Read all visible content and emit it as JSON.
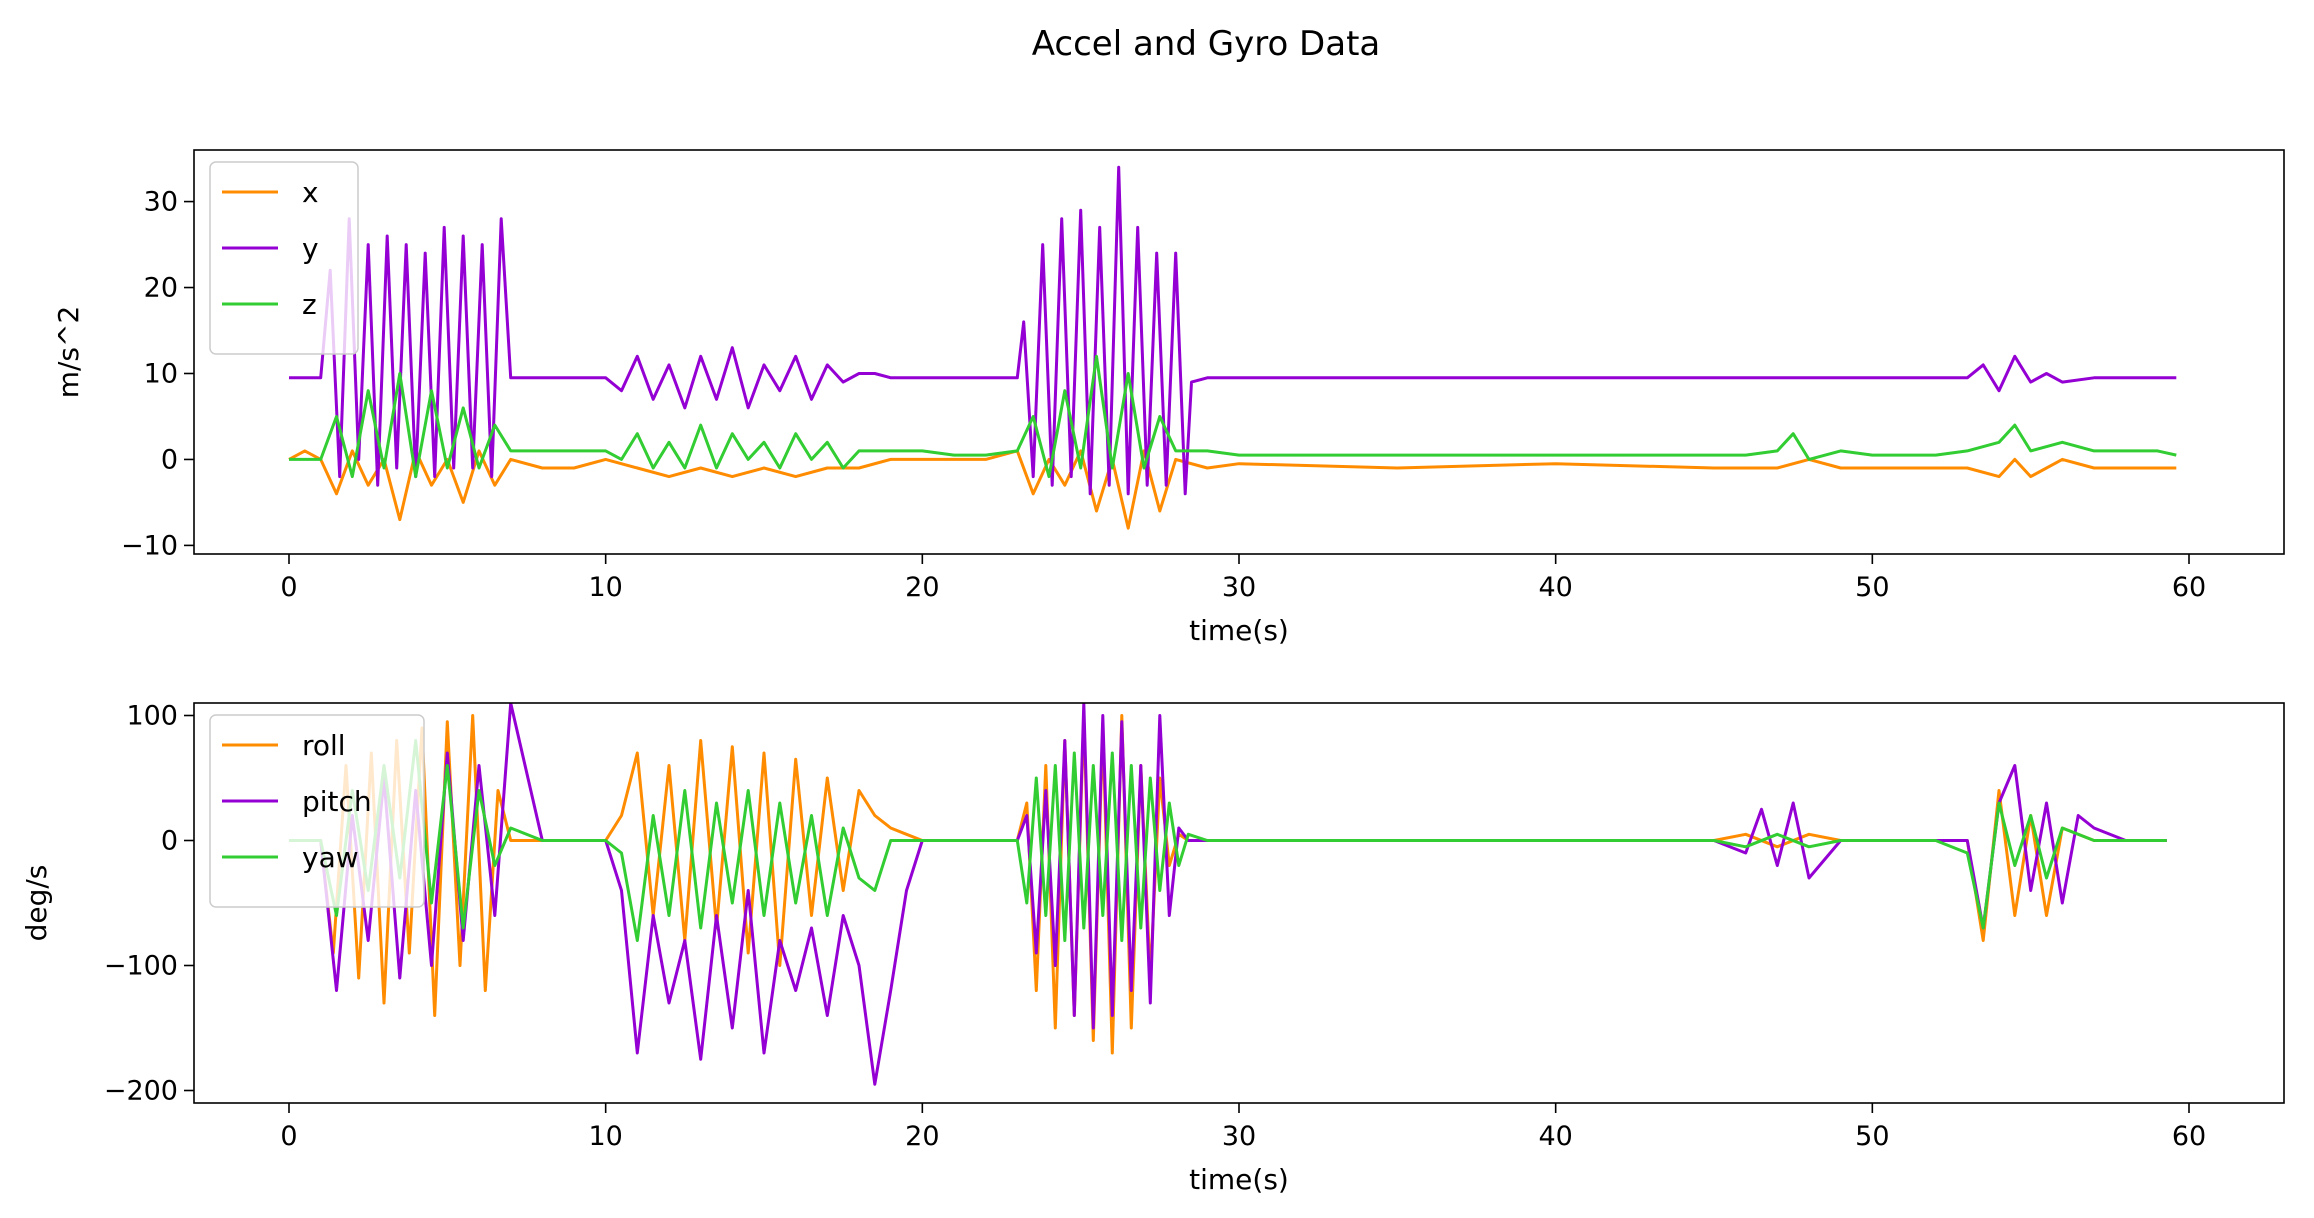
{
  "figure": {
    "title": "Accel and Gyro Data"
  },
  "colors": {
    "x": "#ff8c00",
    "y": "#9400d3",
    "z": "#32cd32",
    "roll": "#ff8c00",
    "pitch": "#9400d3",
    "yaw": "#32cd32"
  },
  "chart_data": [
    {
      "type": "line",
      "title": "",
      "xlabel": "time(s)",
      "ylabel": "m/s^2",
      "xlim": [
        -3,
        63
      ],
      "ylim": [
        -11,
        36
      ],
      "xticks": [
        0,
        10,
        20,
        30,
        40,
        50,
        60
      ],
      "yticks": [
        -10,
        0,
        10,
        20,
        30
      ],
      "ytick_labels": [
        "−10",
        "0",
        "10",
        "20",
        "30"
      ],
      "grid": false,
      "legend_position": "top-left",
      "series": [
        {
          "name": "x",
          "color": "#ff8c00",
          "x": [
            0,
            0.5,
            1,
            1.5,
            2,
            2.5,
            3,
            3.5,
            4,
            4.5,
            5,
            5.5,
            6,
            6.5,
            7,
            8,
            9,
            10,
            11,
            12,
            13,
            14,
            15,
            16,
            17,
            18,
            19,
            20,
            21,
            22,
            23,
            23.5,
            24,
            24.5,
            25,
            25.5,
            26,
            26.5,
            27,
            27.5,
            28,
            29,
            30,
            35,
            40,
            45,
            47,
            48,
            49,
            50,
            52,
            53,
            54,
            54.5,
            55,
            56,
            57,
            58,
            59,
            59.6
          ],
          "y": [
            0,
            1,
            0,
            -4,
            1,
            -3,
            0,
            -7,
            1,
            -3,
            0,
            -5,
            1,
            -3,
            0,
            -1,
            -1,
            0,
            -1,
            -2,
            -1,
            -2,
            -1,
            -2,
            -1,
            -1,
            0,
            0,
            0,
            0,
            1,
            -4,
            0,
            -3,
            1,
            -6,
            0,
            -8,
            1,
            -6,
            0,
            -1,
            -0.5,
            -1,
            -0.5,
            -1,
            -1,
            0,
            -1,
            -1,
            -1,
            -1,
            -2,
            0,
            -2,
            0,
            -1,
            -1,
            -1,
            -1
          ]
        },
        {
          "name": "y",
          "color": "#9400d3",
          "x": [
            0,
            1,
            1.3,
            1.6,
            1.9,
            2.2,
            2.5,
            2.8,
            3.1,
            3.4,
            3.7,
            4,
            4.3,
            4.6,
            4.9,
            5.2,
            5.5,
            5.8,
            6.1,
            6.4,
            6.7,
            7,
            8,
            9,
            10,
            10.5,
            11,
            11.5,
            12,
            12.5,
            13,
            13.5,
            14,
            14.5,
            15,
            15.5,
            16,
            16.5,
            17,
            17.5,
            18,
            18.5,
            19,
            19.5,
            20,
            21,
            22,
            23,
            23.2,
            23.5,
            23.8,
            24.1,
            24.4,
            24.7,
            25,
            25.3,
            25.6,
            25.9,
            26.2,
            26.5,
            26.8,
            27.1,
            27.4,
            27.7,
            28,
            28.3,
            28.5,
            29,
            30,
            35,
            40,
            45,
            50,
            53,
            53.5,
            54,
            54.5,
            55,
            55.5,
            56,
            57,
            58,
            59,
            59.6
          ],
          "y": [
            9.5,
            9.5,
            22,
            -2,
            28,
            0,
            25,
            -3,
            26,
            -1,
            25,
            -2,
            24,
            -2,
            27,
            -1,
            26,
            -1,
            25,
            -2,
            28,
            9.5,
            9.5,
            9.5,
            9.5,
            8,
            12,
            7,
            11,
            6,
            12,
            7,
            13,
            6,
            11,
            8,
            12,
            7,
            11,
            9,
            10,
            10,
            9.5,
            9.5,
            9.5,
            9.5,
            9.5,
            9.5,
            16,
            -2,
            25,
            -3,
            28,
            -2,
            29,
            -4,
            27,
            -3,
            34,
            -4,
            27,
            -3,
            24,
            -3,
            24,
            -4,
            9,
            9.5,
            9.5,
            9.5,
            9.5,
            9.5,
            9.5,
            9.5,
            11,
            8,
            12,
            9,
            10,
            9,
            9.5,
            9.5,
            9.5,
            9.5
          ]
        },
        {
          "name": "z",
          "color": "#32cd32",
          "x": [
            0,
            0.5,
            1,
            1.5,
            2,
            2.5,
            3,
            3.5,
            4,
            4.5,
            5,
            5.5,
            6,
            6.5,
            7,
            8,
            9,
            10,
            10.5,
            11,
            11.5,
            12,
            12.5,
            13,
            13.5,
            14,
            14.5,
            15,
            15.5,
            16,
            16.5,
            17,
            17.5,
            18,
            19,
            20,
            21,
            22,
            23,
            23.5,
            24,
            24.5,
            25,
            25.5,
            26,
            26.5,
            27,
            27.5,
            28,
            29,
            30,
            35,
            40,
            45,
            46,
            47,
            47.5,
            48,
            49,
            50,
            52,
            53,
            54,
            54.5,
            55,
            56,
            57,
            58,
            59,
            59.6
          ],
          "y": [
            0,
            0,
            0,
            5,
            -2,
            8,
            -1,
            10,
            -2,
            8,
            -1,
            6,
            -1,
            4,
            1,
            1,
            1,
            1,
            0,
            3,
            -1,
            2,
            -1,
            4,
            -1,
            3,
            0,
            2,
            -1,
            3,
            0,
            2,
            -1,
            1,
            1,
            1,
            0.5,
            0.5,
            1,
            5,
            -2,
            8,
            -1,
            12,
            -1,
            10,
            -1,
            5,
            1,
            1,
            0.5,
            0.5,
            0.5,
            0.5,
            0.5,
            1,
            3,
            0,
            1,
            0.5,
            0.5,
            1,
            2,
            4,
            1,
            2,
            1,
            1,
            1,
            0.5
          ]
        }
      ]
    },
    {
      "type": "line",
      "title": "",
      "xlabel": "time(s)",
      "ylabel": "deg/s",
      "xlim": [
        -3,
        63
      ],
      "ylim": [
        -210,
        110
      ],
      "xticks": [
        0,
        10,
        20,
        30,
        40,
        50,
        60
      ],
      "yticks": [
        -200,
        -100,
        0,
        100
      ],
      "ytick_labels": [
        "−200",
        "−100",
        "0",
        "100"
      ],
      "grid": false,
      "legend_position": "top-left",
      "series": [
        {
          "name": "roll",
          "color": "#ff8c00",
          "x": [
            0,
            1,
            1.4,
            1.8,
            2.2,
            2.6,
            3,
            3.4,
            3.8,
            4.2,
            4.6,
            5,
            5.4,
            5.8,
            6.2,
            6.6,
            7,
            8,
            9,
            10,
            10.5,
            11,
            11.5,
            12,
            12.5,
            13,
            13.5,
            14,
            14.5,
            15,
            15.5,
            16,
            16.5,
            17,
            17.5,
            18,
            18.5,
            19,
            19.5,
            20,
            21,
            22,
            23,
            23.3,
            23.6,
            23.9,
            24.2,
            24.5,
            24.8,
            25.1,
            25.4,
            25.7,
            26,
            26.3,
            26.6,
            26.9,
            27.2,
            27.5,
            27.8,
            28.1,
            28.4,
            29,
            30,
            35,
            40,
            45,
            46,
            47,
            48,
            49,
            50,
            52,
            53,
            53.5,
            54,
            54.5,
            55,
            55.5,
            56,
            57,
            58,
            59,
            59.3
          ],
          "y": [
            0,
            0,
            -90,
            60,
            -110,
            70,
            -130,
            80,
            -90,
            90,
            -140,
            95,
            -100,
            100,
            -120,
            40,
            0,
            0,
            0,
            0,
            20,
            70,
            -60,
            60,
            -80,
            80,
            -70,
            75,
            -90,
            70,
            -100,
            65,
            -60,
            50,
            -40,
            40,
            20,
            10,
            5,
            0,
            0,
            0,
            0,
            30,
            -120,
            60,
            -150,
            80,
            -140,
            100,
            -160,
            90,
            -170,
            100,
            -150,
            60,
            -110,
            50,
            -20,
            5,
            0,
            0,
            0,
            0,
            0,
            0,
            5,
            -5,
            5,
            0,
            0,
            0,
            0,
            -80,
            40,
            -60,
            20,
            -60,
            10,
            0,
            0,
            0,
            0
          ]
        },
        {
          "name": "pitch",
          "color": "#9400d3",
          "x": [
            0,
            1,
            1.5,
            2,
            2.5,
            3,
            3.5,
            4,
            4.5,
            5,
            5.5,
            6,
            6.5,
            7,
            8,
            9,
            10,
            10.5,
            11,
            11.5,
            12,
            12.5,
            13,
            13.5,
            14,
            14.5,
            15,
            15.5,
            16,
            16.5,
            17,
            17.5,
            18,
            18.5,
            19,
            19.5,
            20,
            21,
            22,
            23,
            23.3,
            23.6,
            23.9,
            24.2,
            24.5,
            24.8,
            25.1,
            25.4,
            25.7,
            26,
            26.3,
            26.6,
            26.9,
            27.2,
            27.5,
            27.8,
            28.1,
            28.4,
            29,
            30,
            35,
            40,
            44,
            45,
            46,
            46.5,
            47,
            47.5,
            48,
            49,
            50,
            52,
            53,
            53.5,
            54,
            54.5,
            55,
            55.5,
            56,
            56.5,
            57,
            58,
            59,
            59.3
          ],
          "y": [
            0,
            0,
            -120,
            20,
            -80,
            50,
            -110,
            40,
            -100,
            70,
            -80,
            60,
            -60,
            110,
            0,
            0,
            0,
            -40,
            -170,
            -60,
            -130,
            -80,
            -175,
            -60,
            -150,
            -40,
            -170,
            -80,
            -120,
            -70,
            -140,
            -60,
            -100,
            -195,
            -120,
            -40,
            0,
            0,
            0,
            0,
            20,
            -90,
            40,
            -100,
            80,
            -140,
            110,
            -150,
            100,
            -140,
            95,
            -120,
            60,
            -130,
            100,
            -60,
            10,
            0,
            0,
            0,
            0,
            0,
            0,
            0,
            -10,
            25,
            -20,
            30,
            -30,
            0,
            0,
            0,
            0,
            -70,
            30,
            60,
            -40,
            30,
            -50,
            20,
            10,
            0,
            0,
            0
          ]
        },
        {
          "name": "yaw",
          "color": "#32cd32",
          "x": [
            0,
            1,
            1.5,
            2,
            2.5,
            3,
            3.5,
            4,
            4.5,
            5,
            5.5,
            6,
            6.5,
            7,
            8,
            9,
            10,
            10.5,
            11,
            11.5,
            12,
            12.5,
            13,
            13.5,
            14,
            14.5,
            15,
            15.5,
            16,
            16.5,
            17,
            17.5,
            18,
            18.5,
            19,
            20,
            21,
            22,
            23,
            23.3,
            23.6,
            23.9,
            24.2,
            24.5,
            24.8,
            25.1,
            25.4,
            25.7,
            26,
            26.3,
            26.6,
            26.9,
            27.2,
            27.5,
            27.8,
            28.1,
            28.4,
            29,
            30,
            35,
            40,
            45,
            46,
            47,
            48,
            49,
            50,
            52,
            53,
            53.5,
            54,
            54.5,
            55,
            55.5,
            56,
            57,
            58,
            59,
            59.3
          ],
          "y": [
            0,
            0,
            -60,
            40,
            -40,
            60,
            -30,
            80,
            -50,
            60,
            -70,
            40,
            -20,
            10,
            0,
            0,
            0,
            -10,
            -80,
            20,
            -60,
            40,
            -70,
            30,
            -50,
            40,
            -60,
            30,
            -50,
            20,
            -60,
            10,
            -30,
            -40,
            0,
            0,
            0,
            0,
            0,
            -50,
            50,
            -60,
            60,
            -80,
            70,
            -70,
            60,
            -60,
            70,
            -80,
            60,
            -70,
            50,
            -40,
            30,
            -20,
            5,
            0,
            0,
            0,
            0,
            0,
            -5,
            5,
            -5,
            0,
            0,
            0,
            -10,
            -70,
            30,
            -20,
            20,
            -30,
            10,
            0,
            0,
            0,
            0
          ]
        }
      ]
    }
  ]
}
